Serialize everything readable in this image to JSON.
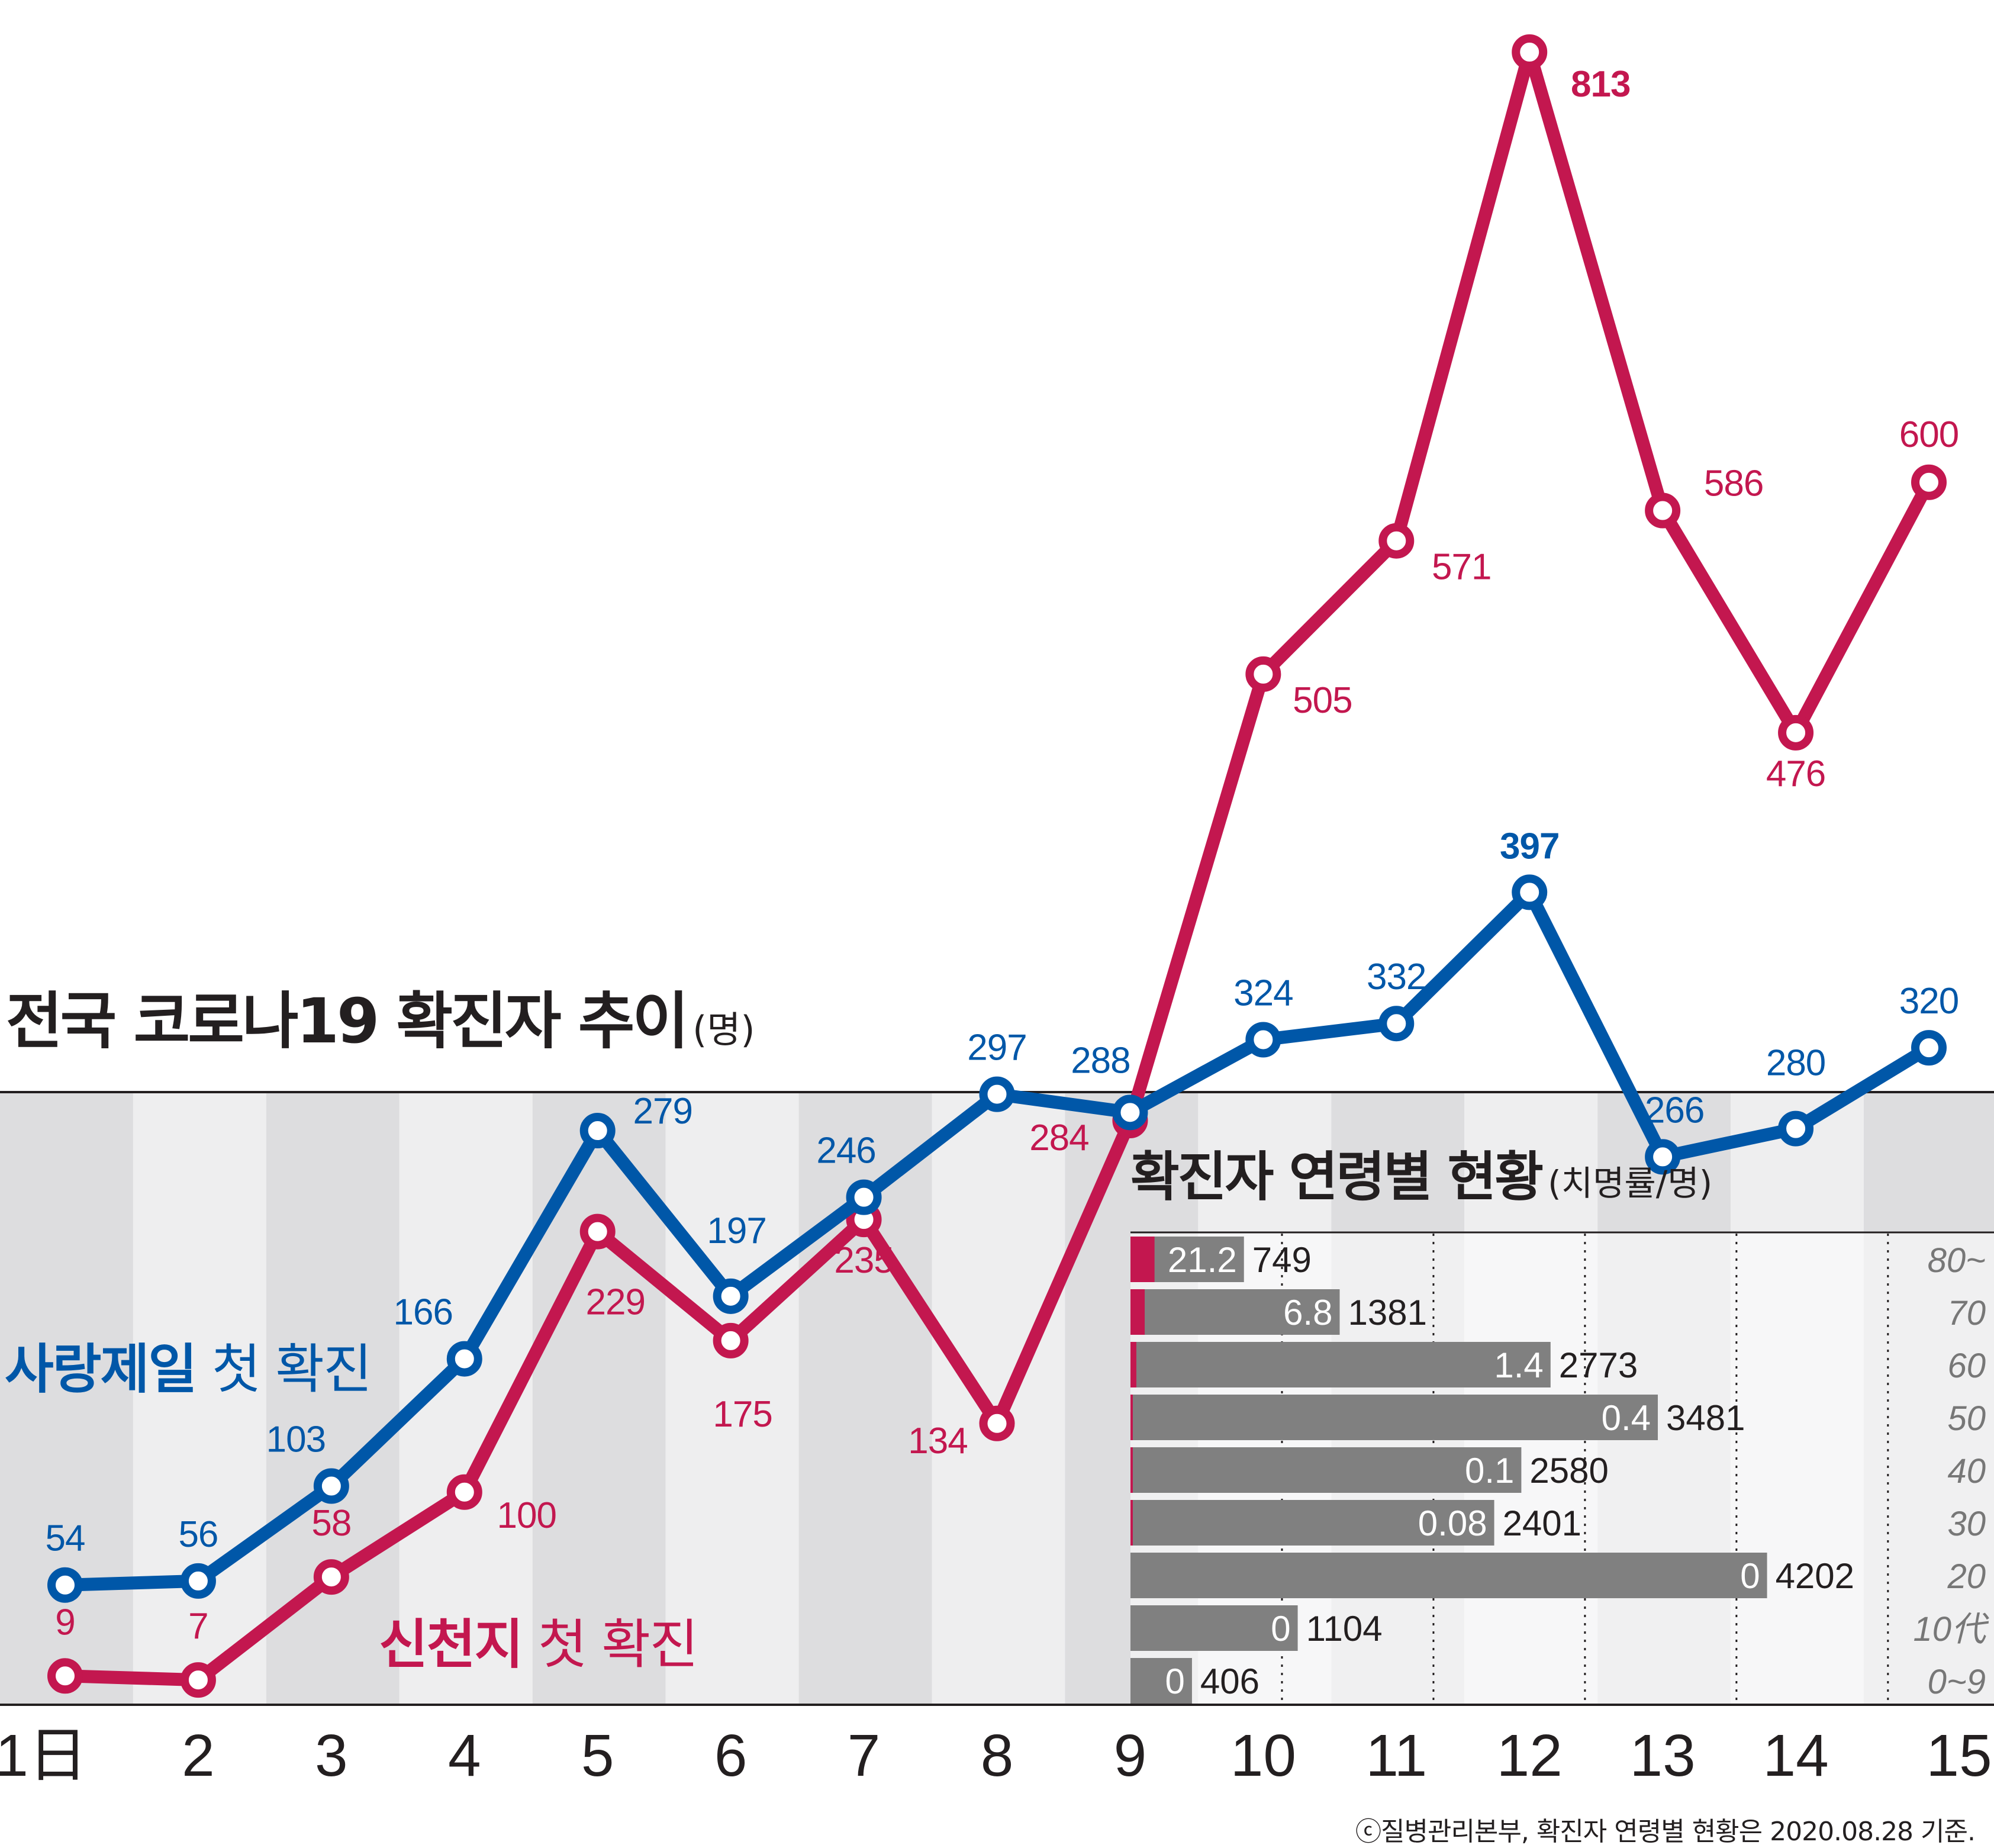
{
  "chart_data": [
    {
      "type": "line",
      "title": "전국 코로나19 확진자 추이",
      "unit": "(명)",
      "x": [
        "1日",
        "2",
        "3",
        "4",
        "5",
        "6",
        "7",
        "8",
        "9",
        "10",
        "11",
        "12",
        "13",
        "14",
        "15"
      ],
      "series": [
        {
          "name": "신천지",
          "color": "#c3174f",
          "values": [
            9,
            7,
            58,
            100,
            229,
            175,
            235,
            134,
            284,
            505,
            571,
            813,
            586,
            476,
            600
          ]
        },
        {
          "name": "사랑제일",
          "color": "#0057a8",
          "values": [
            54,
            56,
            103,
            166,
            279,
            197,
            246,
            297,
            288,
            324,
            332,
            397,
            266,
            280,
            320
          ]
        }
      ],
      "annotations": [
        {
          "series": "사랑제일",
          "text_bold": "사랑제일",
          "text": "첫 확진"
        },
        {
          "series": "신천지",
          "text_bold": "신천지",
          "text": "첫 확진"
        }
      ],
      "ylim": [
        0,
        813
      ]
    },
    {
      "type": "bar",
      "title": "확진자 연령별 현황",
      "unit": "(치명률/명)",
      "categories": [
        "80~",
        "70",
        "60",
        "50",
        "40",
        "30",
        "20",
        "10代",
        "0~9"
      ],
      "series": [
        {
          "name": "확진자",
          "color": "#808080",
          "values": [
            749,
            1381,
            2773,
            3481,
            2580,
            2401,
            4202,
            1104,
            406
          ]
        },
        {
          "name": "치명률",
          "color": "#c3174f",
          "values": [
            21.2,
            6.8,
            1.4,
            0.4,
            0.1,
            0.08,
            0,
            0,
            0
          ],
          "labels": [
            "21.2",
            "6.8",
            "1.4",
            "0.4",
            "0.1",
            "0.08",
            "0",
            "0",
            "0"
          ]
        }
      ],
      "xlim": [
        0,
        5700
      ]
    }
  ],
  "credit": "ⓒ질병관리본부, 확진자 연령별 현황은 2020.08.28 기준."
}
